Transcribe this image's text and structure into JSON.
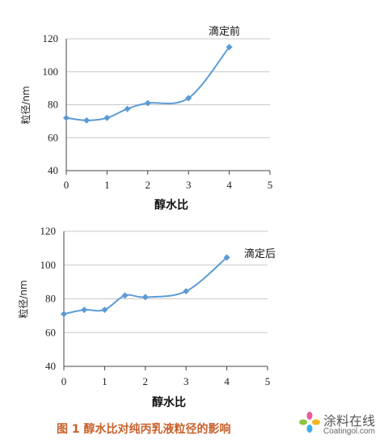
{
  "chart_data": [
    {
      "type": "line",
      "annotation": "滴定前",
      "xlabel": "醇水比",
      "ylabel": "粒径/nm",
      "xlim": [
        0,
        5
      ],
      "ylim": [
        40,
        120
      ],
      "x_ticks": [
        "0",
        "1",
        "2",
        "3",
        "4",
        "5"
      ],
      "y_ticks": [
        "40",
        "60",
        "80",
        "100",
        "120"
      ],
      "grid": "horizontal",
      "color": "#5b9bd5",
      "series": [
        {
          "x": [
            0,
            0.5,
            1,
            1.5,
            2,
            3,
            4
          ],
          "values": [
            72,
            70.5,
            72,
            77.5,
            81,
            84,
            115
          ]
        }
      ]
    },
    {
      "type": "line",
      "annotation": "滴定后",
      "xlabel": "醇水比",
      "ylabel": "粒径/nm",
      "xlim": [
        0,
        5
      ],
      "ylim": [
        40,
        120
      ],
      "x_ticks": [
        "0",
        "1",
        "2",
        "3",
        "4",
        "5"
      ],
      "y_ticks": [
        "40",
        "60",
        "80",
        "100",
        "120"
      ],
      "grid": "horizontal",
      "color": "#5b9bd5",
      "series": [
        {
          "x": [
            0,
            0.5,
            1,
            1.5,
            2,
            3,
            4
          ],
          "values": [
            71,
            73.5,
            73.5,
            82,
            81,
            84.5,
            104.5
          ]
        }
      ]
    }
  ],
  "caption": "图 1    醇水比对纯丙乳液粒径的影响",
  "watermark": {
    "cn": "涂料在线",
    "en": "Coatingol.com"
  }
}
